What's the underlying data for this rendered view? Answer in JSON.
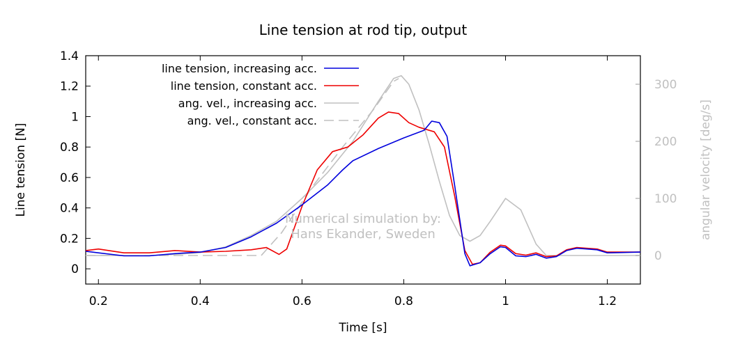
{
  "chart_data": {
    "type": "line",
    "title": "Line tension at rod tip, output",
    "xlabel": "Time [s]",
    "ylabel": "Line tension [N]",
    "y2label": "angular velocity [deg/s]",
    "xlim": [
      0.175,
      1.265
    ],
    "ylim": [
      -0.1,
      1.4
    ],
    "y2lim": [
      -50,
      350
    ],
    "x_ticks": [
      "0.2",
      "0.4",
      "0.6",
      "0.8",
      "1",
      "1.2"
    ],
    "y_ticks": [
      "0",
      "0.2",
      "0.4",
      "0.6",
      "0.8",
      "1",
      "1.2",
      "1.4"
    ],
    "y2_ticks": [
      "0",
      "100",
      "200",
      "300"
    ],
    "grid": false,
    "legend_position": "top-left",
    "annotation": [
      "Numerical simulation by:",
      "Hans Ekander, Sweden"
    ],
    "colors": {
      "increasing": "#0000dd",
      "constant": "#ee0000",
      "angvel": "#c0c0c0"
    },
    "series": [
      {
        "name": "line tension, increasing acc.",
        "axis": "left",
        "color": "#0000dd",
        "dash": "solid",
        "points": [
          [
            0.175,
            0.115
          ],
          [
            0.2,
            0.105
          ],
          [
            0.25,
            0.085
          ],
          [
            0.3,
            0.085
          ],
          [
            0.35,
            0.1
          ],
          [
            0.4,
            0.11
          ],
          [
            0.45,
            0.14
          ],
          [
            0.5,
            0.21
          ],
          [
            0.55,
            0.3
          ],
          [
            0.6,
            0.42
          ],
          [
            0.65,
            0.55
          ],
          [
            0.68,
            0.65
          ],
          [
            0.7,
            0.71
          ],
          [
            0.75,
            0.79
          ],
          [
            0.8,
            0.86
          ],
          [
            0.84,
            0.91
          ],
          [
            0.855,
            0.97
          ],
          [
            0.87,
            0.96
          ],
          [
            0.885,
            0.87
          ],
          [
            0.9,
            0.55
          ],
          [
            0.92,
            0.1
          ],
          [
            0.93,
            0.02
          ],
          [
            0.95,
            0.04
          ],
          [
            0.97,
            0.1
          ],
          [
            0.99,
            0.145
          ],
          [
            1.0,
            0.14
          ],
          [
            1.02,
            0.085
          ],
          [
            1.04,
            0.08
          ],
          [
            1.06,
            0.095
          ],
          [
            1.08,
            0.07
          ],
          [
            1.1,
            0.08
          ],
          [
            1.12,
            0.12
          ],
          [
            1.14,
            0.135
          ],
          [
            1.18,
            0.125
          ],
          [
            1.2,
            0.105
          ],
          [
            1.265,
            0.11
          ]
        ]
      },
      {
        "name": "line tension, constant acc.",
        "axis": "left",
        "color": "#ee0000",
        "dash": "solid",
        "points": [
          [
            0.175,
            0.12
          ],
          [
            0.2,
            0.13
          ],
          [
            0.25,
            0.105
          ],
          [
            0.3,
            0.105
          ],
          [
            0.35,
            0.12
          ],
          [
            0.4,
            0.11
          ],
          [
            0.45,
            0.115
          ],
          [
            0.5,
            0.125
          ],
          [
            0.53,
            0.14
          ],
          [
            0.555,
            0.095
          ],
          [
            0.57,
            0.13
          ],
          [
            0.6,
            0.41
          ],
          [
            0.63,
            0.65
          ],
          [
            0.66,
            0.77
          ],
          [
            0.69,
            0.8
          ],
          [
            0.72,
            0.88
          ],
          [
            0.75,
            0.99
          ],
          [
            0.77,
            1.03
          ],
          [
            0.79,
            1.02
          ],
          [
            0.81,
            0.96
          ],
          [
            0.83,
            0.93
          ],
          [
            0.86,
            0.9
          ],
          [
            0.88,
            0.8
          ],
          [
            0.9,
            0.48
          ],
          [
            0.92,
            0.12
          ],
          [
            0.935,
            0.03
          ],
          [
            0.95,
            0.04
          ],
          [
            0.97,
            0.11
          ],
          [
            0.99,
            0.155
          ],
          [
            1.0,
            0.15
          ],
          [
            1.02,
            0.1
          ],
          [
            1.04,
            0.09
          ],
          [
            1.06,
            0.105
          ],
          [
            1.08,
            0.08
          ],
          [
            1.1,
            0.085
          ],
          [
            1.12,
            0.125
          ],
          [
            1.14,
            0.14
          ],
          [
            1.18,
            0.13
          ],
          [
            1.2,
            0.11
          ],
          [
            1.265,
            0.11
          ]
        ]
      },
      {
        "name": "ang. vel., increasing acc.",
        "axis": "right",
        "color": "#c0c0c0",
        "dash": "solid",
        "points": [
          [
            0.175,
            0
          ],
          [
            0.3,
            0
          ],
          [
            0.35,
            2
          ],
          [
            0.4,
            5
          ],
          [
            0.45,
            15
          ],
          [
            0.5,
            35
          ],
          [
            0.55,
            60
          ],
          [
            0.6,
            100
          ],
          [
            0.65,
            145
          ],
          [
            0.7,
            200
          ],
          [
            0.75,
            270
          ],
          [
            0.78,
            310
          ],
          [
            0.795,
            315
          ],
          [
            0.81,
            300
          ],
          [
            0.83,
            255
          ],
          [
            0.85,
            195
          ],
          [
            0.87,
            130
          ],
          [
            0.89,
            70
          ],
          [
            0.91,
            35
          ],
          [
            0.93,
            25
          ],
          [
            0.95,
            35
          ],
          [
            0.97,
            60
          ],
          [
            1.0,
            100
          ],
          [
            1.03,
            80
          ],
          [
            1.06,
            20
          ],
          [
            1.08,
            0
          ],
          [
            1.265,
            0
          ]
        ]
      },
      {
        "name": "ang. vel., constant acc.",
        "axis": "right",
        "color": "#c0c0c0",
        "dash": "dashed",
        "points": [
          [
            0.175,
            0
          ],
          [
            0.3,
            0
          ],
          [
            0.4,
            0
          ],
          [
            0.5,
            0
          ],
          [
            0.52,
            0
          ],
          [
            0.56,
            40
          ],
          [
            0.62,
            120
          ],
          [
            0.68,
            190
          ],
          [
            0.74,
            255
          ],
          [
            0.78,
            305
          ],
          [
            0.79,
            310
          ]
        ]
      }
    ]
  }
}
